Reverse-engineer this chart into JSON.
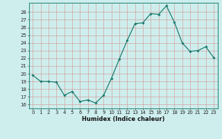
{
  "x": [
    0,
    1,
    2,
    3,
    4,
    5,
    6,
    7,
    8,
    9,
    10,
    11,
    12,
    13,
    14,
    15,
    16,
    17,
    18,
    19,
    20,
    21,
    22,
    23
  ],
  "y": [
    19.8,
    19.0,
    19.0,
    18.9,
    17.2,
    17.7,
    16.4,
    16.6,
    16.2,
    17.2,
    19.4,
    21.9,
    24.3,
    26.5,
    26.6,
    27.8,
    27.7,
    28.8,
    26.7,
    24.0,
    22.9,
    23.0,
    23.5,
    22.1
  ],
  "line_color": "#1a7a6e",
  "marker": "D",
  "marker_size": 1.8,
  "bg_color": "#ceeeed",
  "grid_color": "#b0d8d5",
  "xlabel": "Humidex (Indice chaleur)",
  "ylim": [
    15.5,
    29.2
  ],
  "xlim": [
    -0.5,
    23.5
  ],
  "yticks": [
    16,
    17,
    18,
    19,
    20,
    21,
    22,
    23,
    24,
    25,
    26,
    27,
    28
  ],
  "xticks": [
    0,
    1,
    2,
    3,
    4,
    5,
    6,
    7,
    8,
    9,
    10,
    11,
    12,
    13,
    14,
    15,
    16,
    17,
    18,
    19,
    20,
    21,
    22,
    23
  ],
  "tick_fontsize": 5.0,
  "xlabel_fontsize": 6.0
}
